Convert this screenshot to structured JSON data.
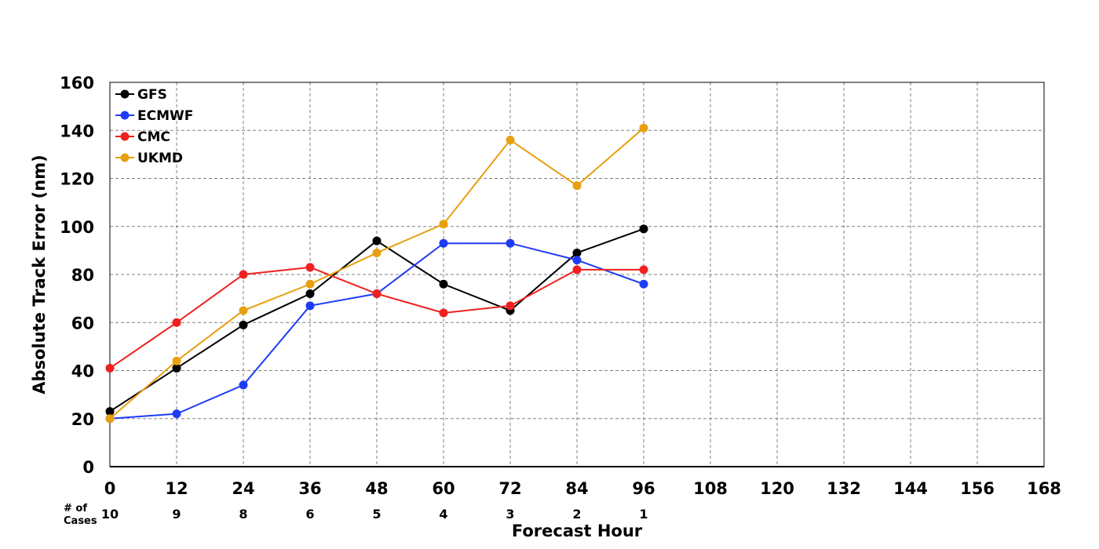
{
  "chart_data": {
    "type": "line",
    "title": "",
    "xlabel": "Forecast Hour",
    "ylabel": "Absolute Track Error (nm)",
    "xlim": [
      0,
      168
    ],
    "ylim": [
      0,
      160
    ],
    "x_ticks": [
      0,
      12,
      24,
      36,
      48,
      60,
      72,
      84,
      96,
      108,
      120,
      132,
      144,
      156,
      168
    ],
    "y_ticks": [
      0,
      20,
      40,
      60,
      80,
      100,
      120,
      140,
      160
    ],
    "grid": true,
    "legend_position": "top-left",
    "cases_label_line1": "# of",
    "cases_label_line2": "Cases",
    "cases": [
      {
        "x": 0,
        "n": "10"
      },
      {
        "x": 12,
        "n": "9"
      },
      {
        "x": 24,
        "n": "8"
      },
      {
        "x": 36,
        "n": "6"
      },
      {
        "x": 48,
        "n": "5"
      },
      {
        "x": 60,
        "n": "4"
      },
      {
        "x": 72,
        "n": "3"
      },
      {
        "x": 84,
        "n": "2"
      },
      {
        "x": 96,
        "n": "1"
      }
    ],
    "x": [
      0,
      12,
      24,
      36,
      48,
      60,
      72,
      84,
      96
    ],
    "series": [
      {
        "name": "GFS",
        "color": "#000000",
        "values": [
          23,
          41,
          59,
          72,
          94,
          76,
          65,
          89,
          99
        ]
      },
      {
        "name": "ECMWF",
        "color": "#1f3cf5",
        "values": [
          20,
          22,
          34,
          67,
          72,
          93,
          93,
          86,
          76
        ]
      },
      {
        "name": "CMC",
        "color": "#f02020",
        "values": [
          41,
          60,
          80,
          83,
          72,
          64,
          67,
          82,
          82
        ]
      },
      {
        "name": "UKMD",
        "color": "#e8a010",
        "values": [
          20,
          44,
          65,
          76,
          89,
          101,
          136,
          117,
          141
        ]
      }
    ]
  }
}
